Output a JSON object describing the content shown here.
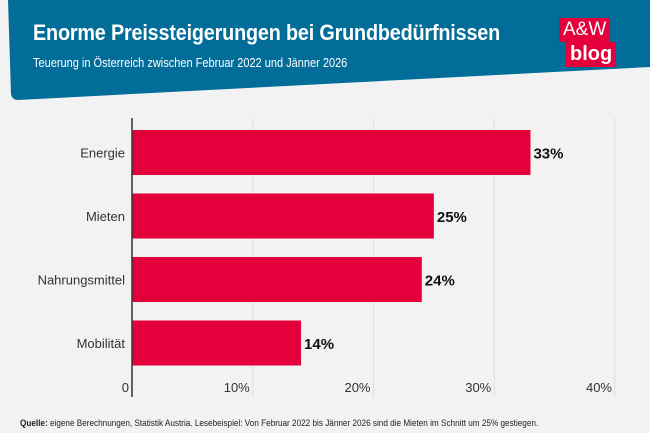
{
  "header": {
    "title": "Enorme Preissteigerungen bei Grundbedürfnissen",
    "subtitle": "Teuerung in Österreich zwischen Februar 2022 und Jänner 2026",
    "logo_top": "A&W",
    "logo_bottom": "blog"
  },
  "colors": {
    "banner": "#036d9a",
    "bar": "#e4003a",
    "background": "#f2f2f2"
  },
  "chart_data": {
    "type": "bar",
    "orientation": "horizontal",
    "categories": [
      "Energie",
      "Mieten",
      "Nahrungsmittel",
      "Mobilität"
    ],
    "values": [
      33,
      25,
      24,
      14
    ],
    "data_labels": [
      "33%",
      "25%",
      "24%",
      "14%"
    ],
    "xlim": [
      0,
      40
    ],
    "xticks": [
      "0",
      "10%",
      "20%",
      "30%",
      "40%"
    ],
    "grid": true
  },
  "footer": {
    "source_label": "Quelle:",
    "source_text": " eigene Berechnungen, Statistik Austria. Lesebeispiel: Von Februar 2022 bis Jänner 2026 sind die Mieten im Schnitt um 25% gestiegen."
  }
}
